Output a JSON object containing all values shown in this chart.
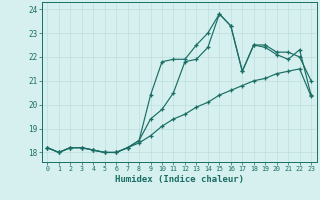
{
  "xlabel": "Humidex (Indice chaleur)",
  "ylabel": "",
  "xlim": [
    -0.5,
    23.5
  ],
  "ylim": [
    17.6,
    24.3
  ],
  "xticks": [
    0,
    1,
    2,
    3,
    4,
    5,
    6,
    7,
    8,
    9,
    10,
    11,
    12,
    13,
    14,
    15,
    16,
    17,
    18,
    19,
    20,
    21,
    22,
    23
  ],
  "yticks": [
    18,
    19,
    20,
    21,
    22,
    23,
    24
  ],
  "background_color": "#d6efef",
  "grid_color": "#bfdfdf",
  "line_color": "#1a6e64",
  "line1": [
    18.2,
    18.0,
    18.2,
    18.2,
    18.1,
    18.0,
    18.0,
    18.2,
    18.5,
    20.4,
    21.8,
    21.9,
    21.9,
    22.5,
    23.0,
    23.8,
    23.3,
    21.4,
    22.5,
    22.4,
    22.1,
    21.9,
    22.3,
    20.4
  ],
  "line2": [
    18.2,
    18.0,
    18.2,
    18.2,
    18.1,
    18.0,
    18.0,
    18.2,
    18.5,
    19.4,
    19.8,
    20.5,
    21.8,
    21.9,
    22.4,
    23.8,
    23.3,
    21.4,
    22.5,
    22.5,
    22.2,
    22.2,
    22.0,
    21.0
  ],
  "line3": [
    18.2,
    18.0,
    18.2,
    18.2,
    18.1,
    18.0,
    18.0,
    18.2,
    18.4,
    18.7,
    19.1,
    19.4,
    19.6,
    19.9,
    20.1,
    20.4,
    20.6,
    20.8,
    21.0,
    21.1,
    21.3,
    21.4,
    21.5,
    20.35
  ]
}
